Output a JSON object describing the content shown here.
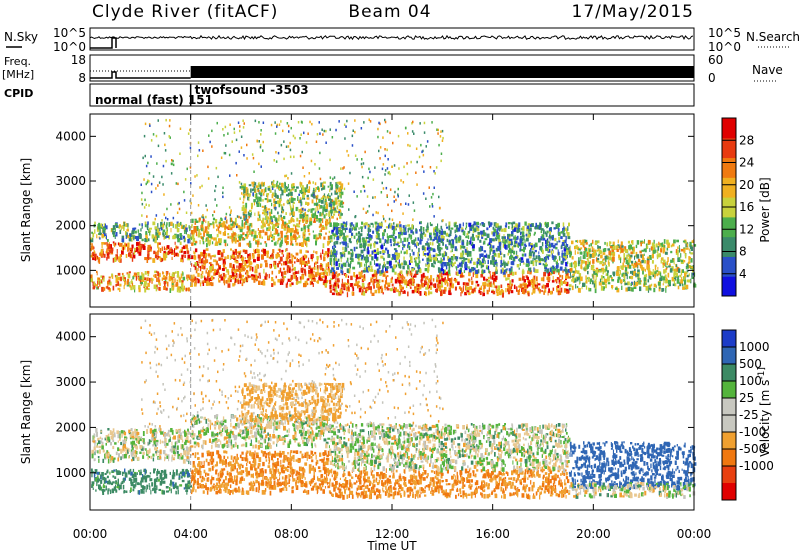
{
  "header": {
    "station": "Clyde River (fitACF)",
    "beam": "Beam 04",
    "date": "17/May/2015"
  },
  "strips": {
    "nsky": {
      "label": "N.Sky",
      "tick_top": "10^5",
      "tick_bottom": "10^0",
      "right_label": "N.Search",
      "right_tick_top": "10^5",
      "right_tick_bottom": "10^0"
    },
    "freq": {
      "label_line1": "Freq.",
      "label_line2": "[MHz]",
      "tick_top": "18",
      "tick_bottom": "8",
      "right_label": "Nave",
      "right_tick_top": "60",
      "right_tick_bottom": "0"
    },
    "cpid": {
      "label": "CPID",
      "mode1": "normal (fast) 151",
      "mode2": "twofsound -3503",
      "switch_time_hours": 4.0
    }
  },
  "colors": {
    "power_scale": [
      "#1010e0",
      "#2a50c8",
      "#3a8a6a",
      "#4cae4c",
      "#c8d23c",
      "#f0b020",
      "#f07a10",
      "#e83a10",
      "#e00000"
    ],
    "velocity_scale": [
      "#1c3cc8",
      "#2f66b4",
      "#3c8a64",
      "#54b43c",
      "#c8c8c0",
      "#c8c8c0",
      "#f0a030",
      "#f07810",
      "#e84010",
      "#e00000"
    ],
    "ground_gray": "#c4c4bc"
  },
  "chart_data": [
    {
      "type": "heatmap",
      "name": "Power",
      "xlabel": "",
      "ylabel": "Slant Range [km]",
      "x_range": [
        0,
        24
      ],
      "y_range": [
        180,
        4500
      ],
      "y_ticks": [
        1000,
        2000,
        3000,
        4000
      ],
      "colorbar_label": "Power [dB]",
      "colorbar_ticks": [
        4,
        8,
        12,
        16,
        20,
        24,
        28
      ],
      "colorbar_range": [
        0,
        32
      ],
      "bands": [
        {
          "x0": 0.0,
          "x1": 4.0,
          "y0": 1250,
          "y1": 1650,
          "v": 24
        },
        {
          "x0": 0.0,
          "x1": 4.0,
          "y0": 1700,
          "y1": 2100,
          "v": 12
        },
        {
          "x0": 0.0,
          "x1": 4.0,
          "y0": 600,
          "y1": 1000,
          "v": 20
        },
        {
          "x0": 4.0,
          "x1": 9.5,
          "y0": 1600,
          "y1": 2200,
          "v": 18
        },
        {
          "x0": 4.0,
          "x1": 9.5,
          "y0": 700,
          "y1": 1500,
          "v": 24
        },
        {
          "x0": 6.0,
          "x1": 10.0,
          "y0": 2200,
          "y1": 3000,
          "v": 14
        },
        {
          "x0": 9.5,
          "x1": 19.0,
          "y0": 500,
          "y1": 1000,
          "v": 24
        },
        {
          "x0": 9.5,
          "x1": 19.0,
          "y0": 1000,
          "y1": 2100,
          "v": 10
        },
        {
          "x0": 19.0,
          "x1": 24.0,
          "y0": 1000,
          "y1": 1700,
          "v": 16
        },
        {
          "x0": 19.0,
          "x1": 24.0,
          "y0": 600,
          "y1": 1000,
          "v": 14
        }
      ]
    },
    {
      "type": "heatmap",
      "name": "Velocity",
      "xlabel": "Time UT",
      "ylabel": "Slant Range [km]",
      "x_range": [
        0,
        24
      ],
      "x_ticks": [
        "00:00",
        "04:00",
        "08:00",
        "12:00",
        "16:00",
        "20:00",
        "00:00"
      ],
      "y_range": [
        180,
        4500
      ],
      "y_ticks": [
        1000,
        2000,
        3000,
        4000
      ],
      "colorbar_label": "Velocity [m s^-1]",
      "colorbar_ticks": [
        "1000",
        "500",
        "100",
        "25",
        "-25",
        "-100",
        "-500",
        "-1000"
      ],
      "bands": [
        {
          "x0": 0.0,
          "x1": 4.0,
          "y0": 1300,
          "y1": 2000,
          "v": 0
        },
        {
          "x0": 0.0,
          "x1": 4.0,
          "y0": 600,
          "y1": 1100,
          "v": 200
        },
        {
          "x0": 4.0,
          "x1": 9.5,
          "y0": 600,
          "y1": 1500,
          "v": -300
        },
        {
          "x0": 4.0,
          "x1": 9.5,
          "y0": 1600,
          "y1": 2300,
          "v": 0
        },
        {
          "x0": 6.0,
          "x1": 10.0,
          "y0": 2200,
          "y1": 3000,
          "v": -150
        },
        {
          "x0": 9.5,
          "x1": 19.0,
          "y0": 500,
          "y1": 1100,
          "v": -300
        },
        {
          "x0": 9.5,
          "x1": 19.0,
          "y0": 1100,
          "y1": 2100,
          "v": 0
        },
        {
          "x0": 19.0,
          "x1": 24.0,
          "y0": 700,
          "y1": 1700,
          "v": 500
        },
        {
          "x0": 19.0,
          "x1": 24.0,
          "y0": 500,
          "y1": 800,
          "v": 0
        }
      ]
    }
  ]
}
